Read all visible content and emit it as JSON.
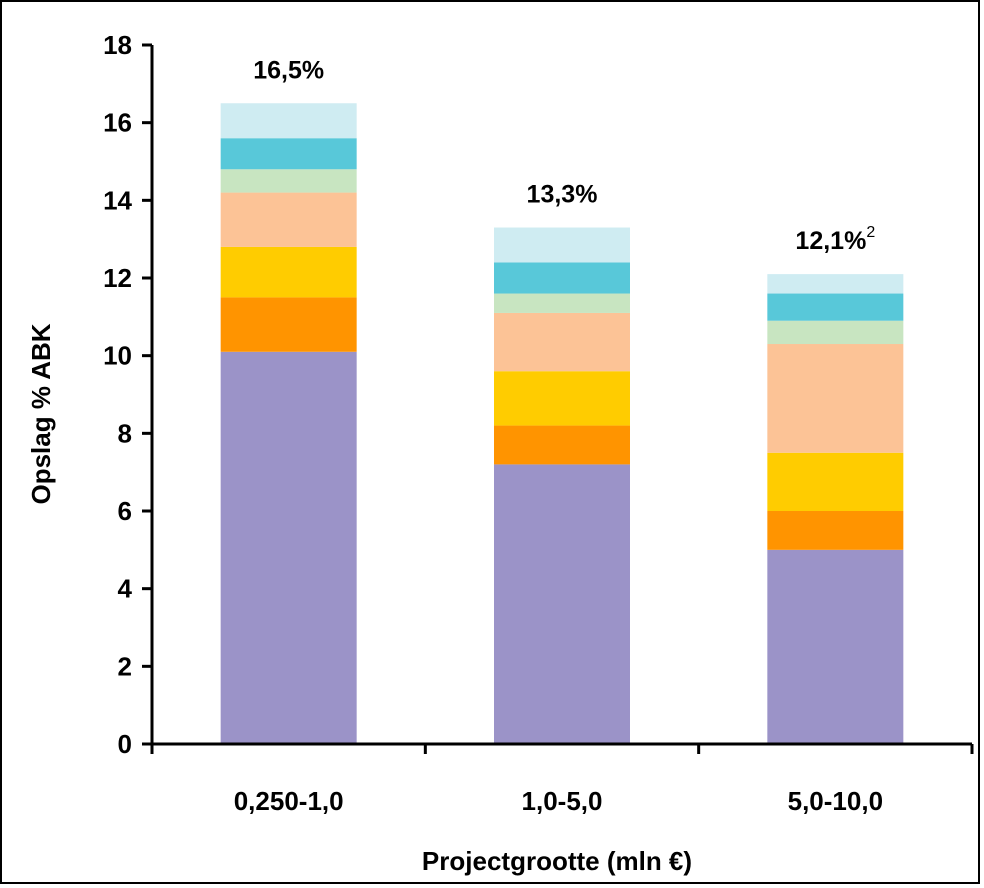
{
  "chart_data": {
    "type": "bar",
    "stacked": true,
    "xlabel": "Projectgrootte (mln €)",
    "ylabel": "Opslag % ABK",
    "ylim": [
      0,
      18
    ],
    "yticks": [
      0,
      2,
      4,
      6,
      8,
      10,
      12,
      14,
      16,
      18
    ],
    "grid": false,
    "legend": "none",
    "categories": [
      "0,250-1,0",
      "1,0-5,0",
      "5,0-10,0"
    ],
    "series": [
      {
        "color": "#9b93c8",
        "values": [
          10.1,
          7.2,
          5.0
        ]
      },
      {
        "color": "#ff9400",
        "values": [
          1.4,
          1.0,
          1.0
        ]
      },
      {
        "color": "#ffcc00",
        "values": [
          1.3,
          1.4,
          1.5
        ]
      },
      {
        "color": "#fcc396",
        "values": [
          1.4,
          1.5,
          2.8
        ]
      },
      {
        "color": "#c8e5c1",
        "values": [
          0.6,
          0.5,
          0.6
        ]
      },
      {
        "color": "#58c8d9",
        "values": [
          0.8,
          0.8,
          0.7
        ]
      },
      {
        "color": "#cfecf2",
        "values": [
          0.9,
          0.9,
          0.5
        ]
      }
    ],
    "totals": [
      "16,5%",
      "13,3%",
      "12,1%"
    ],
    "total_superscripts": [
      "",
      "",
      "2"
    ]
  }
}
